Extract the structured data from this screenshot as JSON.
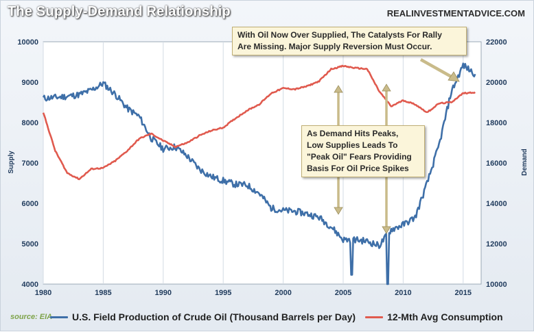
{
  "header": {
    "title": "The Supply-Demand Relationship",
    "brand": "REALINVESTMENTADVICE.COM"
  },
  "source": "source: EIA",
  "annotations": {
    "top": [
      "With Oil Now Over Supplied, The Catalysts For Rally",
      "Are Missing. Major Supply Reversion Must Occur."
    ],
    "middle": [
      "As Demand Hits Peaks,",
      "Low Supplies Leads To",
      "\"Peak Oil\" Fears Providing",
      "Basis For Oil Price Spikes"
    ]
  },
  "chart_data": {
    "type": "line",
    "ylabel_left": "Supply",
    "ylabel_right": "Demand",
    "x_ticks": [
      "1980",
      "1985",
      "1990",
      "1995",
      "2000",
      "2005",
      "2010",
      "2015"
    ],
    "xlim": [
      1980,
      2016.5
    ],
    "ylim_left": [
      4000,
      10000
    ],
    "ylim_right": [
      10000,
      22000
    ],
    "y_ticks_left": [
      "4000",
      "5000",
      "6000",
      "7000",
      "8000",
      "9000",
      "10000"
    ],
    "y_ticks_right": [
      "10000",
      "12000",
      "14000",
      "16000",
      "18000",
      "20000",
      "22000"
    ],
    "grid": "vertical",
    "legend_position": "bottom",
    "series": [
      {
        "name": "U.S. Field Production of Crude Oil (Thousand Barrels per Day)",
        "axis": "left",
        "color": "#3e6fa8",
        "points": [
          [
            1980,
            8600
          ],
          [
            1981,
            8620
          ],
          [
            1982,
            8650
          ],
          [
            1983,
            8690
          ],
          [
            1984,
            8800
          ],
          [
            1985,
            8970
          ],
          [
            1986,
            8700
          ],
          [
            1987,
            8350
          ],
          [
            1988,
            8150
          ],
          [
            1989,
            7610
          ],
          [
            1990,
            7350
          ],
          [
            1991,
            7400
          ],
          [
            1992,
            7170
          ],
          [
            1993,
            6850
          ],
          [
            1994,
            6660
          ],
          [
            1995,
            6560
          ],
          [
            1996,
            6470
          ],
          [
            1997,
            6450
          ],
          [
            1998,
            6250
          ],
          [
            1999,
            5880
          ],
          [
            2000,
            5820
          ],
          [
            2001,
            5800
          ],
          [
            2002,
            5740
          ],
          [
            2003,
            5650
          ],
          [
            2004,
            5420
          ],
          [
            2005,
            5100
          ],
          [
            2006,
            5100
          ],
          [
            2007,
            5060
          ],
          [
            2008,
            4950
          ],
          [
            2009,
            5350
          ],
          [
            2010,
            5470
          ],
          [
            2011,
            5650
          ],
          [
            2012,
            6500
          ],
          [
            2013,
            7450
          ],
          [
            2014,
            8750
          ],
          [
            2015,
            9420
          ],
          [
            2016,
            9200
          ]
        ],
        "dips": [
          [
            2005.7,
            4230
          ],
          [
            2008.7,
            4000
          ]
        ]
      },
      {
        "name": "12-Mth Avg Consumption",
        "axis": "right",
        "color": "#e05a4e",
        "points": [
          [
            1980,
            18500
          ],
          [
            1981,
            16600
          ],
          [
            1982,
            15500
          ],
          [
            1983,
            15200
          ],
          [
            1984,
            15700
          ],
          [
            1985,
            15750
          ],
          [
            1986,
            16100
          ],
          [
            1987,
            16600
          ],
          [
            1988,
            17200
          ],
          [
            1989,
            17450
          ],
          [
            1990,
            17100
          ],
          [
            1991,
            16800
          ],
          [
            1992,
            17000
          ],
          [
            1993,
            17350
          ],
          [
            1994,
            17600
          ],
          [
            1995,
            17750
          ],
          [
            1996,
            18200
          ],
          [
            1997,
            18600
          ],
          [
            1998,
            18900
          ],
          [
            1999,
            19450
          ],
          [
            2000,
            19700
          ],
          [
            2001,
            19650
          ],
          [
            2002,
            19800
          ],
          [
            2003,
            20050
          ],
          [
            2004,
            20650
          ],
          [
            2005,
            20800
          ],
          [
            2006,
            20700
          ],
          [
            2007,
            20650
          ],
          [
            2008,
            19550
          ],
          [
            2009,
            18800
          ],
          [
            2010,
            19100
          ],
          [
            2011,
            18900
          ],
          [
            2012,
            18500
          ],
          [
            2013,
            18950
          ],
          [
            2014,
            19000
          ],
          [
            2015,
            19450
          ],
          [
            2016,
            19500
          ]
        ]
      }
    ]
  }
}
